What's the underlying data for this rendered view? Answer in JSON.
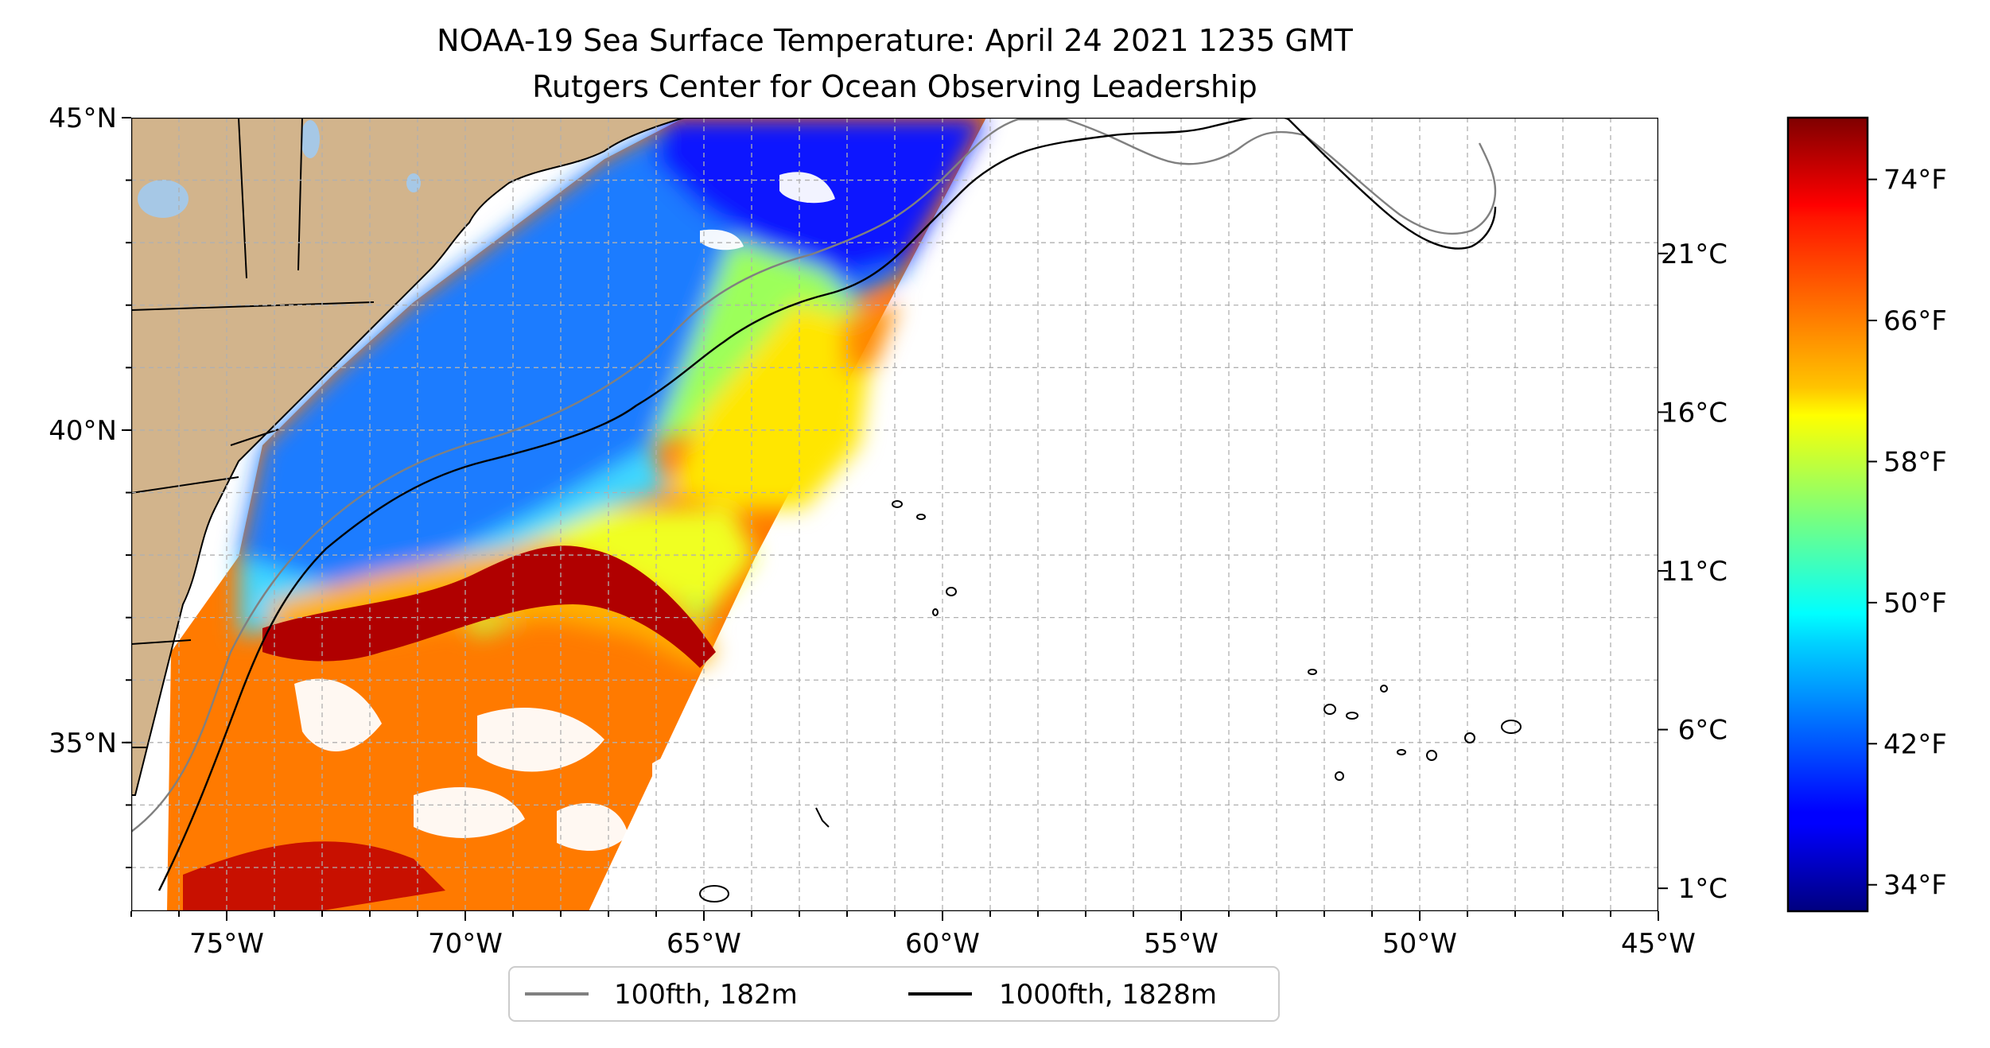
{
  "title": {
    "line1": "NOAA-19 Sea Surface Temperature: April 24 2021 1235 GMT",
    "line2": "Rutgers Center for Ocean Observing Leadership"
  },
  "map": {
    "lon_range": [
      -77,
      -45
    ],
    "lat_range": [
      32.3,
      45
    ],
    "graticule_step_deg": 1,
    "gridlines": true,
    "land_color": "#d2b48c",
    "lake_color": "#a6c8e6",
    "lon_ticks": [
      "75°W",
      "70°W",
      "65°W",
      "60°W",
      "55°W",
      "50°W",
      "45°W"
    ],
    "lat_ticks": [
      "35°N",
      "40°N",
      "45°N"
    ]
  },
  "colorbar": {
    "colormap": "jet",
    "range_f": [
      32.5,
      77.5
    ],
    "celsius_ticks": [
      "1°C",
      "6°C",
      "11°C",
      "16°C",
      "21°C"
    ],
    "fahrenheit_ticks": [
      "34°F",
      "42°F",
      "50°F",
      "58°F",
      "66°F",
      "74°F"
    ]
  },
  "legend": {
    "placement": "bottom-center",
    "items": [
      {
        "label": "100fth, 182m",
        "color": "#808080"
      },
      {
        "label": "1000fth, 1828m",
        "color": "#000000"
      }
    ]
  }
}
